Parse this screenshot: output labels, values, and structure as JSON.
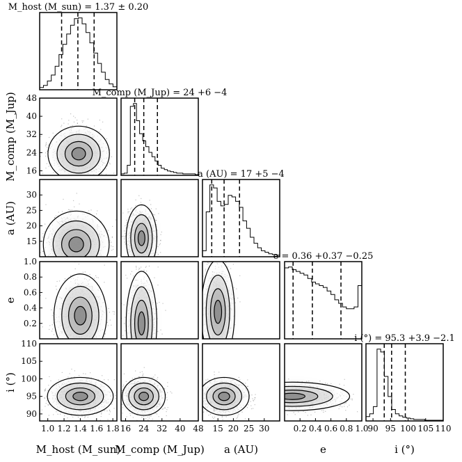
{
  "chart_data": {
    "type": "corner",
    "parameters": [
      {
        "label": "M_host (M_sun)",
        "range": [
          0.9,
          1.85
        ],
        "ticks": [
          1.0,
          1.2,
          1.4,
          1.6,
          1.8
        ],
        "tick_labels": [
          "1.0",
          "1.2",
          "1.4",
          "1.6",
          "1.8"
        ],
        "title": "M_host (M_sun) = 1.37 ± 0.20",
        "median": 1.37,
        "q16": 1.17,
        "q84": 1.57
      },
      {
        "label": "M_comp (M_Jup)",
        "range": [
          14,
          48
        ],
        "ticks": [
          16,
          24,
          32,
          40,
          48
        ],
        "tick_labels": [
          "16",
          "24",
          "32",
          "40",
          "48"
        ],
        "title": "M_comp (M_Jup) = 24 +6 −4",
        "median": 24,
        "q16": 20,
        "q84": 30
      },
      {
        "label": "a (AU)",
        "range": [
          10,
          35
        ],
        "ticks": [
          15,
          20,
          25,
          30
        ],
        "tick_labels": [
          "15",
          "20",
          "25",
          "30"
        ],
        "title": "a (AU) = 17 +5 −4",
        "median": 17,
        "q16": 13,
        "q84": 22
      },
      {
        "label": "e",
        "range": [
          0,
          1
        ],
        "ticks": [
          0.2,
          0.4,
          0.6,
          0.8,
          1.0
        ],
        "tick_labels": [
          "0.2",
          "0.4",
          "0.6",
          "0.8",
          "1.0"
        ],
        "title": "e = 0.36 +0.37 −0.25",
        "median": 0.36,
        "q16": 0.11,
        "q84": 0.73
      },
      {
        "label": "i (°)",
        "range": [
          88,
          110
        ],
        "ticks": [
          90,
          95,
          100,
          105,
          110
        ],
        "tick_labels": [
          "90",
          "95",
          "100",
          "105",
          "110"
        ],
        "title": "i (°) = 95.3 +3.9 −2.1",
        "median": 95.3,
        "q16": 93.2,
        "q84": 99.2
      }
    ],
    "histograms": [
      [
        3,
        6,
        12,
        20,
        32,
        48,
        62,
        76,
        88,
        97,
        98,
        90,
        78,
        64,
        50,
        36,
        24,
        14,
        8,
        4
      ],
      [
        2,
        3,
        14,
        96,
        100,
        76,
        58,
        48,
        40,
        32,
        26,
        20,
        14,
        10,
        8,
        6,
        5,
        4,
        3,
        3,
        2,
        2,
        2,
        2,
        1
      ],
      [
        8,
        60,
        96,
        92,
        74,
        68,
        70,
        82,
        80,
        74,
        66,
        48,
        38,
        26,
        18,
        12,
        8,
        6,
        4,
        3,
        2
      ],
      [
        80,
        81,
        78,
        76,
        74,
        72,
        68,
        64,
        62,
        60,
        58,
        54,
        50,
        44,
        40,
        36,
        34,
        34,
        36,
        60
      ],
      [
        6,
        10,
        20,
        100,
        96,
        62,
        34,
        16,
        10,
        7,
        5,
        4,
        3,
        2,
        2,
        2,
        1,
        1,
        1,
        1,
        1
      ]
    ],
    "kde_peaks": [
      {
        "x": 0,
        "y": 1,
        "peak": [
          1.38,
          23.5
        ],
        "extent": [
          0.28,
          9
        ]
      },
      {
        "x": 0,
        "y": 2,
        "peak": [
          1.35,
          14
        ],
        "extent": [
          0.3,
          8
        ]
      },
      {
        "x": 1,
        "y": 2,
        "peak": [
          23,
          16
        ],
        "extent": [
          5,
          8
        ]
      },
      {
        "x": 0,
        "y": 3,
        "peak": [
          1.4,
          0.3
        ],
        "extent": [
          0.24,
          0.4
        ]
      },
      {
        "x": 1,
        "y": 3,
        "peak": [
          23,
          0.2
        ],
        "extent": [
          5,
          0.5
        ]
      },
      {
        "x": 2,
        "y": 3,
        "peak": [
          15,
          0.35
        ],
        "extent": [
          4,
          0.5
        ]
      },
      {
        "x": 0,
        "y": 4,
        "peak": [
          1.4,
          95
        ],
        "extent": [
          0.3,
          4
        ]
      },
      {
        "x": 1,
        "y": 4,
        "peak": [
          24,
          95
        ],
        "extent": [
          7,
          4
        ]
      },
      {
        "x": 2,
        "y": 4,
        "peak": [
          17,
          95
        ],
        "extent": [
          6,
          4
        ]
      },
      {
        "x": 3,
        "y": 4,
        "peak": [
          0.1,
          95
        ],
        "extent": [
          0.55,
          3
        ]
      }
    ],
    "xlabels": [
      "M_host (M_sun)",
      "M_comp (M_Jup)",
      "a (AU)",
      "e",
      "i (°)"
    ],
    "ylabels": [
      "",
      "M_comp (M_Jup)",
      "a (AU)",
      "e",
      "i (°)"
    ],
    "contour_levels": [
      0.5,
      0.75,
      0.9,
      0.97
    ],
    "grid": false,
    "legend": "none"
  }
}
